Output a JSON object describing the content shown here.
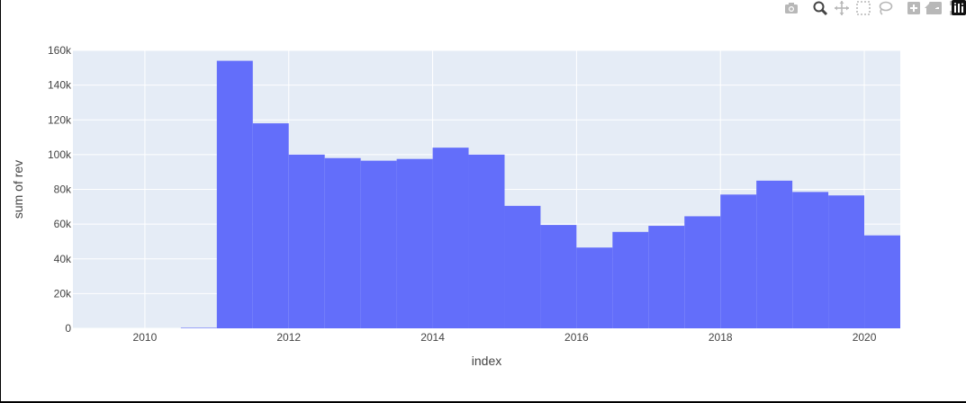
{
  "modebar": {
    "buttons": [
      "camera-icon",
      "zoom-icon",
      "pan-icon",
      "box-select-icon",
      "lasso-icon",
      "zoom-in-icon",
      "zoom-out-icon",
      "autoscale-icon",
      "reset-axes-icon",
      "plotly-logo-icon"
    ]
  },
  "colors": {
    "bar": "#636efa",
    "plot_bg": "#e5ecf6",
    "grid": "#ffffff"
  },
  "chart_data": {
    "type": "bar",
    "title": "",
    "xlabel": "index",
    "ylabel": "sum of rev",
    "xlim": [
      2009.0,
      2020.5
    ],
    "ylim": [
      0,
      160000
    ],
    "grid": true,
    "x_ticks": [
      2010,
      2012,
      2014,
      2016,
      2018,
      2020
    ],
    "x_tick_labels": [
      "2010",
      "2012",
      "2014",
      "2016",
      "2018",
      "2020"
    ],
    "y_ticks": [
      0,
      20000,
      40000,
      60000,
      80000,
      100000,
      120000,
      140000,
      160000
    ],
    "y_tick_labels": [
      "0",
      "20k",
      "40k",
      "60k",
      "80k",
      "100k",
      "120k",
      "140k",
      "160k"
    ],
    "bin_width": 0.5,
    "bins": [
      {
        "start": 2010.5,
        "value": 300
      },
      {
        "start": 2011.0,
        "value": 154000
      },
      {
        "start": 2011.5,
        "value": 118000
      },
      {
        "start": 2012.0,
        "value": 100000
      },
      {
        "start": 2012.5,
        "value": 98000
      },
      {
        "start": 2013.0,
        "value": 96500
      },
      {
        "start": 2013.5,
        "value": 97500
      },
      {
        "start": 2014.0,
        "value": 104000
      },
      {
        "start": 2014.5,
        "value": 100000
      },
      {
        "start": 2015.0,
        "value": 70500
      },
      {
        "start": 2015.5,
        "value": 59500
      },
      {
        "start": 2016.0,
        "value": 46500
      },
      {
        "start": 2016.5,
        "value": 55500
      },
      {
        "start": 2017.0,
        "value": 59000
      },
      {
        "start": 2017.5,
        "value": 64500
      },
      {
        "start": 2018.0,
        "value": 77000
      },
      {
        "start": 2018.5,
        "value": 85000
      },
      {
        "start": 2019.0,
        "value": 78500
      },
      {
        "start": 2019.5,
        "value": 76500
      },
      {
        "start": 2020.0,
        "value": 53500
      }
    ]
  }
}
